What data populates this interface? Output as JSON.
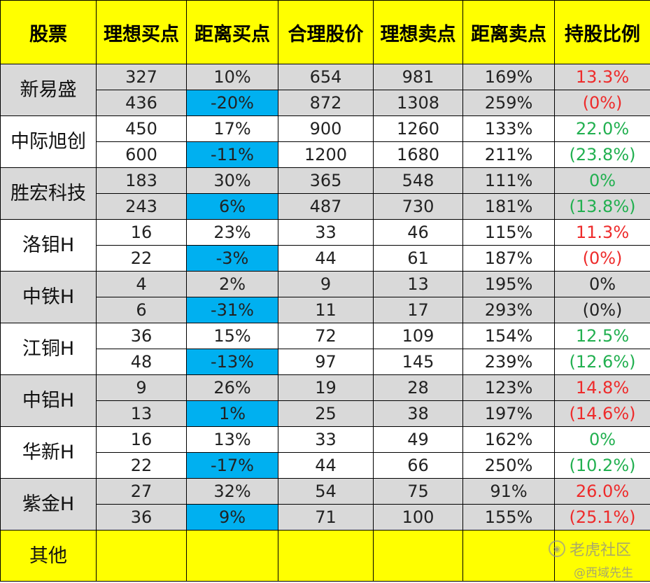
{
  "headers": [
    "股票",
    "理想买点",
    "距离买点",
    "合理股价",
    "理想卖点",
    "距离卖点",
    "持股比例"
  ],
  "stocks": [
    {
      "name": "新易盛",
      "shade": "grey",
      "rows": [
        {
          "buy": "327",
          "buy_dist": "10%",
          "fair": "654",
          "sell": "981",
          "sell_dist": "169%",
          "ratio": "13.3%",
          "ratio_color": "red"
        },
        {
          "buy": "436",
          "buy_dist": "-20%",
          "fair": "872",
          "sell": "1308",
          "sell_dist": "259%",
          "ratio": "(0%)",
          "ratio_color": "red"
        }
      ]
    },
    {
      "name": "中际旭创",
      "shade": "white",
      "rows": [
        {
          "buy": "450",
          "buy_dist": "17%",
          "fair": "900",
          "sell": "1260",
          "sell_dist": "133%",
          "ratio": "22.0%",
          "ratio_color": "green"
        },
        {
          "buy": "600",
          "buy_dist": "-11%",
          "fair": "1200",
          "sell": "1680",
          "sell_dist": "211%",
          "ratio": "(23.8%)",
          "ratio_color": "green"
        }
      ]
    },
    {
      "name": "胜宏科技",
      "shade": "grey",
      "rows": [
        {
          "buy": "183",
          "buy_dist": "30%",
          "fair": "365",
          "sell": "548",
          "sell_dist": "111%",
          "ratio": "0%",
          "ratio_color": "green"
        },
        {
          "buy": "243",
          "buy_dist": "6%",
          "fair": "487",
          "sell": "730",
          "sell_dist": "181%",
          "ratio": "(13.8%)",
          "ratio_color": "green"
        }
      ]
    },
    {
      "name": "洛钼H",
      "shade": "white",
      "rows": [
        {
          "buy": "16",
          "buy_dist": "23%",
          "fair": "33",
          "sell": "46",
          "sell_dist": "115%",
          "ratio": "11.3%",
          "ratio_color": "red"
        },
        {
          "buy": "22",
          "buy_dist": "-3%",
          "fair": "44",
          "sell": "61",
          "sell_dist": "187%",
          "ratio": "(0%)",
          "ratio_color": "red"
        }
      ]
    },
    {
      "name": "中铁H",
      "shade": "grey",
      "rows": [
        {
          "buy": "4",
          "buy_dist": "2%",
          "fair": "9",
          "sell": "13",
          "sell_dist": "195%",
          "ratio": "0%",
          "ratio_color": "black"
        },
        {
          "buy": "6",
          "buy_dist": "-31%",
          "fair": "11",
          "sell": "17",
          "sell_dist": "293%",
          "ratio": "(0%)",
          "ratio_color": "black"
        }
      ]
    },
    {
      "name": "江铜H",
      "shade": "white",
      "rows": [
        {
          "buy": "36",
          "buy_dist": "15%",
          "fair": "72",
          "sell": "109",
          "sell_dist": "154%",
          "ratio": "12.5%",
          "ratio_color": "green"
        },
        {
          "buy": "48",
          "buy_dist": "-13%",
          "fair": "97",
          "sell": "145",
          "sell_dist": "239%",
          "ratio": "(12.6%)",
          "ratio_color": "green"
        }
      ]
    },
    {
      "name": "中铝H",
      "shade": "grey",
      "rows": [
        {
          "buy": "9",
          "buy_dist": "26%",
          "fair": "19",
          "sell": "28",
          "sell_dist": "123%",
          "ratio": "14.8%",
          "ratio_color": "red"
        },
        {
          "buy": "13",
          "buy_dist": "1%",
          "fair": "25",
          "sell": "38",
          "sell_dist": "197%",
          "ratio": "(14.6%)",
          "ratio_color": "red"
        }
      ]
    },
    {
      "name": "华新H",
      "shade": "white",
      "rows": [
        {
          "buy": "16",
          "buy_dist": "13%",
          "fair": "33",
          "sell": "49",
          "sell_dist": "162%",
          "ratio": "0%",
          "ratio_color": "green"
        },
        {
          "buy": "22",
          "buy_dist": "-17%",
          "fair": "44",
          "sell": "66",
          "sell_dist": "250%",
          "ratio": "(10.2%)",
          "ratio_color": "green"
        }
      ]
    },
    {
      "name": "紫金H",
      "shade": "grey",
      "rows": [
        {
          "buy": "27",
          "buy_dist": "32%",
          "fair": "54",
          "sell": "75",
          "sell_dist": "91%",
          "ratio": "26.0%",
          "ratio_color": "red"
        },
        {
          "buy": "36",
          "buy_dist": "9%",
          "fair": "71",
          "sell": "100",
          "sell_dist": "155%",
          "ratio": "(25.1%)",
          "ratio_color": "red"
        }
      ]
    }
  ],
  "other_row": {
    "name": "其他"
  },
  "colors": {
    "header_bg": "#ffff00",
    "grey_row": "#d9d9d9",
    "highlight": "#00b0f0",
    "red": "#ee2b2b",
    "green": "#22b050"
  },
  "watermark": {
    "line1": "老虎社区",
    "line2": "@西域先生"
  }
}
